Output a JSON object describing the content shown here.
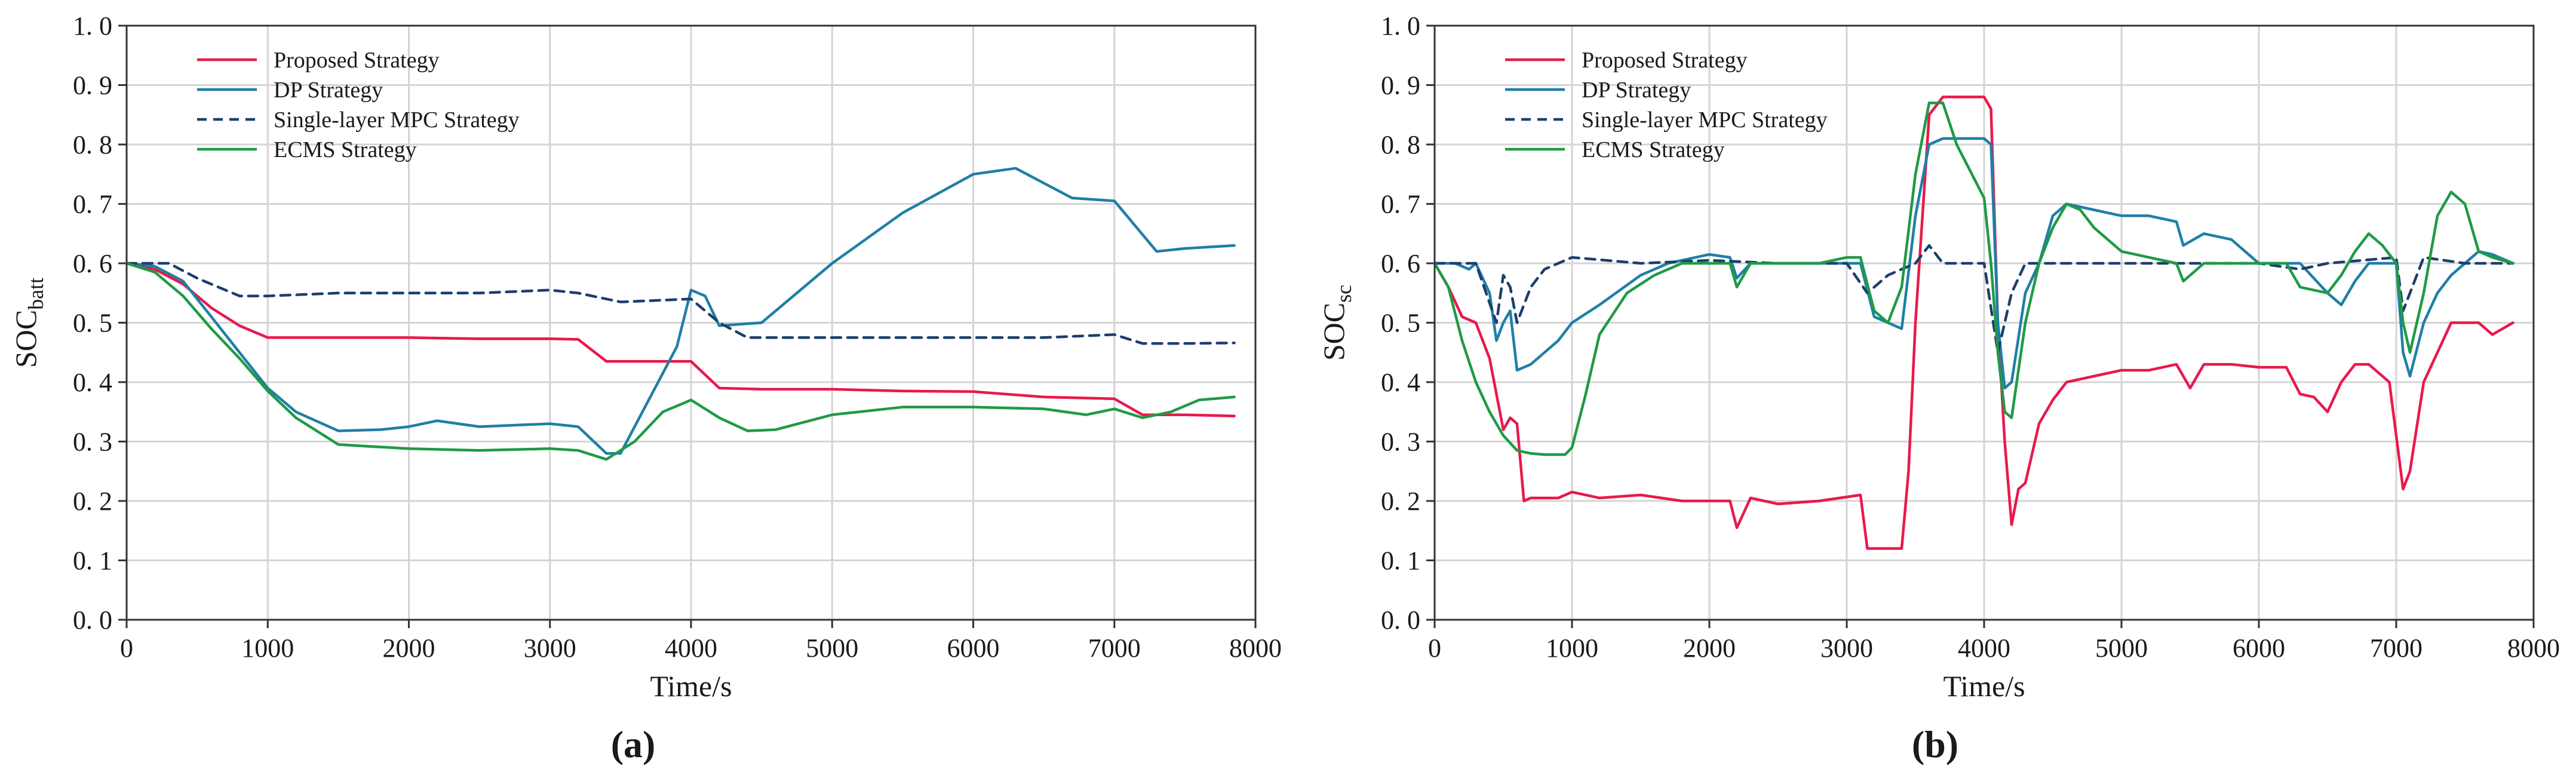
{
  "chart_data": [
    {
      "type": "line",
      "panel": "a",
      "panel_label": "(a)",
      "xlabel": "Time/s",
      "ylabel_main": "SOC",
      "ylabel_sub": "batt",
      "xlim": [
        0,
        8000
      ],
      "ylim": [
        0.0,
        1.0
      ],
      "xticks": [
        0,
        1000,
        2000,
        3000,
        4000,
        5000,
        6000,
        7000,
        8000
      ],
      "xtick_labels": [
        "0",
        "1000",
        "2000",
        "3000",
        "4000",
        "5000",
        "6000",
        "7000",
        "8000"
      ],
      "yticks": [
        0,
        0.1,
        0.2,
        0.3,
        0.4,
        0.5,
        0.6,
        0.7,
        0.8,
        0.9,
        1.0
      ],
      "ytick_labels": [
        "0. 0",
        "0. 1",
        "0. 2",
        "0. 3",
        "0. 4",
        "0. 5",
        "0. 6",
        "0. 7",
        "0. 8",
        "0. 9",
        "1. 0"
      ],
      "grid": true,
      "legend_position": "top-left",
      "series": [
        {
          "name": "Proposed Strategy",
          "color": "#e8194b",
          "dash": "solid",
          "x": [
            0,
            200,
            400,
            600,
            800,
            1000,
            1500,
            2000,
            2500,
            3000,
            3200,
            3400,
            3600,
            3800,
            4000,
            4200,
            4500,
            5000,
            5500,
            6000,
            6500,
            7000,
            7200,
            7500,
            7850
          ],
          "y": [
            0.6,
            0.59,
            0.565,
            0.525,
            0.495,
            0.475,
            0.475,
            0.475,
            0.473,
            0.473,
            0.472,
            0.435,
            0.435,
            0.435,
            0.435,
            0.39,
            0.388,
            0.388,
            0.385,
            0.384,
            0.375,
            0.372,
            0.345,
            0.345,
            0.343
          ]
        },
        {
          "name": "DP Strategy",
          "color": "#1f7fa6",
          "dash": "solid",
          "x": [
            0,
            200,
            400,
            600,
            800,
            1000,
            1200,
            1500,
            1800,
            2000,
            2200,
            2500,
            3000,
            3200,
            3400,
            3500,
            3700,
            3900,
            4000,
            4100,
            4200,
            4500,
            5000,
            5500,
            6000,
            6300,
            6700,
            7000,
            7300,
            7500,
            7850
          ],
          "y": [
            0.6,
            0.595,
            0.57,
            0.51,
            0.45,
            0.39,
            0.35,
            0.318,
            0.32,
            0.325,
            0.335,
            0.325,
            0.33,
            0.325,
            0.28,
            0.28,
            0.37,
            0.46,
            0.555,
            0.545,
            0.495,
            0.5,
            0.6,
            0.685,
            0.75,
            0.76,
            0.71,
            0.705,
            0.62,
            0.625,
            0.63
          ]
        },
        {
          "name": "Single-layer MPC Strategy",
          "color": "#1b3f6e",
          "dash": "dashed",
          "x": [
            0,
            300,
            500,
            800,
            1000,
            1500,
            2000,
            2500,
            3000,
            3200,
            3500,
            4000,
            4200,
            4400,
            5000,
            6000,
            6500,
            7000,
            7200,
            7500,
            7850
          ],
          "y": [
            0.6,
            0.6,
            0.575,
            0.545,
            0.545,
            0.55,
            0.55,
            0.55,
            0.555,
            0.55,
            0.535,
            0.54,
            0.5,
            0.475,
            0.475,
            0.475,
            0.475,
            0.48,
            0.465,
            0.465,
            0.466
          ]
        },
        {
          "name": "ECMS Strategy",
          "color": "#1f9a46",
          "dash": "solid",
          "x": [
            0,
            200,
            400,
            600,
            800,
            1000,
            1200,
            1500,
            2000,
            2500,
            3000,
            3200,
            3400,
            3600,
            3800,
            4000,
            4200,
            4400,
            4600,
            5000,
            5500,
            6000,
            6500,
            6800,
            7000,
            7200,
            7400,
            7600,
            7850
          ],
          "y": [
            0.6,
            0.585,
            0.545,
            0.49,
            0.44,
            0.385,
            0.34,
            0.295,
            0.288,
            0.285,
            0.288,
            0.285,
            0.27,
            0.3,
            0.35,
            0.37,
            0.34,
            0.318,
            0.32,
            0.345,
            0.358,
            0.358,
            0.355,
            0.345,
            0.355,
            0.34,
            0.35,
            0.37,
            0.375
          ]
        }
      ],
      "legend": [
        "Proposed Strategy",
        "DP Strategy",
        "Single-layer MPC Strategy",
        "ECMS Strategy"
      ]
    },
    {
      "type": "line",
      "panel": "b",
      "panel_label": "(b)",
      "xlabel": "Time/s",
      "ylabel_main": "SOC",
      "ylabel_sub": "sc",
      "xlim": [
        0,
        8000
      ],
      "ylim": [
        0.0,
        1.0
      ],
      "xticks": [
        0,
        1000,
        2000,
        3000,
        4000,
        5000,
        6000,
        7000,
        8000
      ],
      "xtick_labels": [
        "0",
        "1000",
        "2000",
        "3000",
        "4000",
        "5000",
        "6000",
        "7000",
        "8000"
      ],
      "yticks": [
        0,
        0.1,
        0.2,
        0.3,
        0.4,
        0.5,
        0.6,
        0.7,
        0.8,
        0.9,
        1.0
      ],
      "ytick_labels": [
        "0. 0",
        "0. 1",
        "0. 2",
        "0. 3",
        "0. 4",
        "0. 5",
        "0. 6",
        "0. 7",
        "0. 8",
        "0. 9",
        "1. 0"
      ],
      "grid": true,
      "legend_position": "top-left",
      "series": [
        {
          "name": "Proposed Strategy",
          "color": "#e8194b",
          "dash": "solid",
          "x": [
            0,
            100,
            200,
            300,
            400,
            500,
            550,
            600,
            650,
            700,
            900,
            1000,
            1200,
            1500,
            1800,
            2000,
            2150,
            2200,
            2300,
            2500,
            2800,
            3100,
            3150,
            3250,
            3400,
            3450,
            3500,
            3600,
            3700,
            4000,
            4050,
            4100,
            4150,
            4200,
            4250,
            4300,
            4400,
            4500,
            4600,
            4800,
            5000,
            5200,
            5400,
            5500,
            5600,
            5800,
            6000,
            6200,
            6300,
            6400,
            6500,
            6600,
            6700,
            6800,
            6950,
            7050,
            7100,
            7200,
            7300,
            7400,
            7600,
            7700,
            7850
          ],
          "y": [
            0.6,
            0.56,
            0.51,
            0.5,
            0.44,
            0.32,
            0.34,
            0.33,
            0.2,
            0.205,
            0.205,
            0.215,
            0.205,
            0.21,
            0.2,
            0.2,
            0.2,
            0.155,
            0.205,
            0.195,
            0.2,
            0.21,
            0.12,
            0.12,
            0.12,
            0.25,
            0.5,
            0.85,
            0.88,
            0.88,
            0.86,
            0.5,
            0.3,
            0.16,
            0.22,
            0.23,
            0.33,
            0.37,
            0.4,
            0.41,
            0.42,
            0.42,
            0.43,
            0.39,
            0.43,
            0.43,
            0.425,
            0.425,
            0.38,
            0.375,
            0.35,
            0.4,
            0.43,
            0.43,
            0.4,
            0.22,
            0.25,
            0.4,
            0.45,
            0.5,
            0.5,
            0.48,
            0.5
          ]
        },
        {
          "name": "DP Strategy",
          "color": "#1f7fa6",
          "dash": "solid",
          "x": [
            0,
            150,
            250,
            300,
            400,
            450,
            500,
            550,
            600,
            700,
            800,
            900,
            1000,
            1200,
            1500,
            1700,
            2000,
            2150,
            2200,
            2300,
            2500,
            2800,
            3000,
            3100,
            3200,
            3300,
            3400,
            3500,
            3600,
            3700,
            4000,
            4050,
            4100,
            4150,
            4200,
            4300,
            4400,
            4500,
            4600,
            4800,
            5000,
            5200,
            5400,
            5450,
            5600,
            5800,
            6000,
            6200,
            6300,
            6500,
            6600,
            6700,
            6800,
            6900,
            7000,
            7050,
            7100,
            7200,
            7300,
            7400,
            7500,
            7600,
            7700,
            7850
          ],
          "y": [
            0.6,
            0.6,
            0.59,
            0.6,
            0.55,
            0.47,
            0.5,
            0.52,
            0.42,
            0.43,
            0.45,
            0.47,
            0.5,
            0.53,
            0.58,
            0.6,
            0.615,
            0.61,
            0.575,
            0.6,
            0.6,
            0.6,
            0.6,
            0.6,
            0.51,
            0.5,
            0.49,
            0.68,
            0.8,
            0.81,
            0.81,
            0.8,
            0.5,
            0.39,
            0.4,
            0.55,
            0.6,
            0.68,
            0.7,
            0.69,
            0.68,
            0.68,
            0.67,
            0.63,
            0.65,
            0.64,
            0.6,
            0.6,
            0.6,
            0.55,
            0.53,
            0.57,
            0.6,
            0.6,
            0.6,
            0.45,
            0.41,
            0.5,
            0.55,
            0.58,
            0.6,
            0.62,
            0.615,
            0.6
          ]
        },
        {
          "name": "Single-layer MPC Strategy",
          "color": "#1b3f6e",
          "dash": "dashed",
          "x": [
            0,
            300,
            450,
            500,
            550,
            600,
            650,
            700,
            800,
            900,
            1000,
            1500,
            2000,
            2500,
            3000,
            3150,
            3300,
            3500,
            3600,
            3700,
            4000,
            4100,
            4200,
            4300,
            4500,
            5000,
            5500,
            6000,
            6300,
            6500,
            7000,
            7050,
            7100,
            7200,
            7500,
            7850
          ],
          "y": [
            0.6,
            0.6,
            0.5,
            0.58,
            0.56,
            0.5,
            0.53,
            0.56,
            0.59,
            0.6,
            0.61,
            0.6,
            0.605,
            0.6,
            0.6,
            0.55,
            0.58,
            0.6,
            0.63,
            0.6,
            0.6,
            0.45,
            0.55,
            0.6,
            0.6,
            0.6,
            0.6,
            0.6,
            0.59,
            0.6,
            0.61,
            0.52,
            0.55,
            0.61,
            0.6,
            0.6
          ]
        },
        {
          "name": "ECMS Strategy",
          "color": "#1f9a46",
          "dash": "solid",
          "x": [
            0,
            100,
            200,
            300,
            400,
            500,
            600,
            700,
            800,
            950,
            1000,
            1100,
            1200,
            1400,
            1600,
            1800,
            2000,
            2150,
            2200,
            2300,
            2500,
            2800,
            3000,
            3100,
            3200,
            3300,
            3400,
            3500,
            3600,
            3700,
            3800,
            4000,
            4050,
            4100,
            4150,
            4200,
            4300,
            4400,
            4500,
            4600,
            4700,
            4800,
            5000,
            5200,
            5400,
            5450,
            5600,
            5800,
            6000,
            6200,
            6300,
            6500,
            6600,
            6700,
            6800,
            6900,
            7000,
            7050,
            7100,
            7200,
            7300,
            7400,
            7500,
            7600,
            7700,
            7850
          ],
          "y": [
            0.6,
            0.56,
            0.47,
            0.4,
            0.35,
            0.31,
            0.285,
            0.28,
            0.278,
            0.278,
            0.29,
            0.38,
            0.48,
            0.55,
            0.58,
            0.6,
            0.6,
            0.6,
            0.56,
            0.6,
            0.6,
            0.6,
            0.61,
            0.61,
            0.52,
            0.5,
            0.56,
            0.75,
            0.87,
            0.87,
            0.8,
            0.71,
            0.6,
            0.45,
            0.35,
            0.34,
            0.5,
            0.6,
            0.66,
            0.7,
            0.69,
            0.66,
            0.62,
            0.61,
            0.6,
            0.57,
            0.6,
            0.6,
            0.6,
            0.6,
            0.56,
            0.55,
            0.58,
            0.62,
            0.65,
            0.63,
            0.6,
            0.5,
            0.45,
            0.55,
            0.68,
            0.72,
            0.7,
            0.62,
            0.61,
            0.6
          ]
        }
      ],
      "legend": [
        "Proposed Strategy",
        "DP Strategy",
        "Single-layer MPC Strategy",
        "ECMS Strategy"
      ]
    }
  ]
}
